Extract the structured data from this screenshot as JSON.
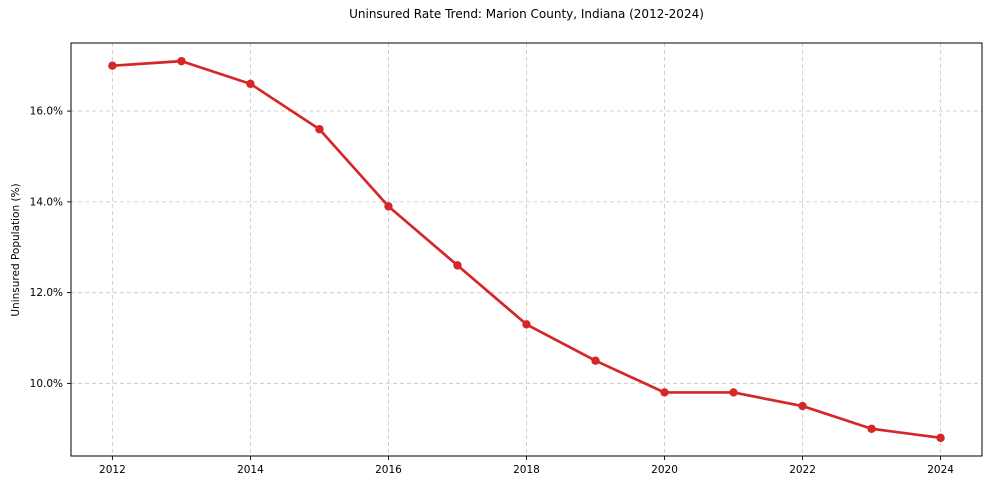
{
  "chart_data": {
    "type": "line",
    "title": "Uninsured Rate Trend: Marion County, Indiana (2012-2024)",
    "xlabel": "",
    "ylabel": "Uninsured Population (%)",
    "x": [
      2012,
      2013,
      2014,
      2015,
      2016,
      2017,
      2018,
      2019,
      2020,
      2021,
      2022,
      2023,
      2024
    ],
    "values": [
      17.0,
      17.1,
      16.6,
      15.6,
      13.9,
      12.6,
      11.3,
      10.5,
      9.8,
      9.8,
      9.5,
      9.0,
      8.8
    ],
    "xticks": [
      {
        "value": 2012,
        "label": "2012"
      },
      {
        "value": 2014,
        "label": "2014"
      },
      {
        "value": 2016,
        "label": "2016"
      },
      {
        "value": 2018,
        "label": "2018"
      },
      {
        "value": 2020,
        "label": "2020"
      },
      {
        "value": 2022,
        "label": "2022"
      },
      {
        "value": 2024,
        "label": "2024"
      }
    ],
    "yticks": [
      {
        "value": 10,
        "label": "10.0%"
      },
      {
        "value": 12,
        "label": "12.0%"
      },
      {
        "value": 14,
        "label": "14.0%"
      },
      {
        "value": 16,
        "label": "16.0%"
      }
    ],
    "xlim": [
      2011.4,
      2024.6
    ],
    "ylim": [
      8.4,
      17.5
    ],
    "grid": {
      "visible": true,
      "style": "dashed",
      "color": "#cccccc"
    },
    "legend": {
      "visible": false
    },
    "colors": {
      "line": "#d62728",
      "marker": "#d62728",
      "spine": "#000000",
      "tick_text": "#000000",
      "background": "#ffffff"
    },
    "marker": "circle"
  }
}
